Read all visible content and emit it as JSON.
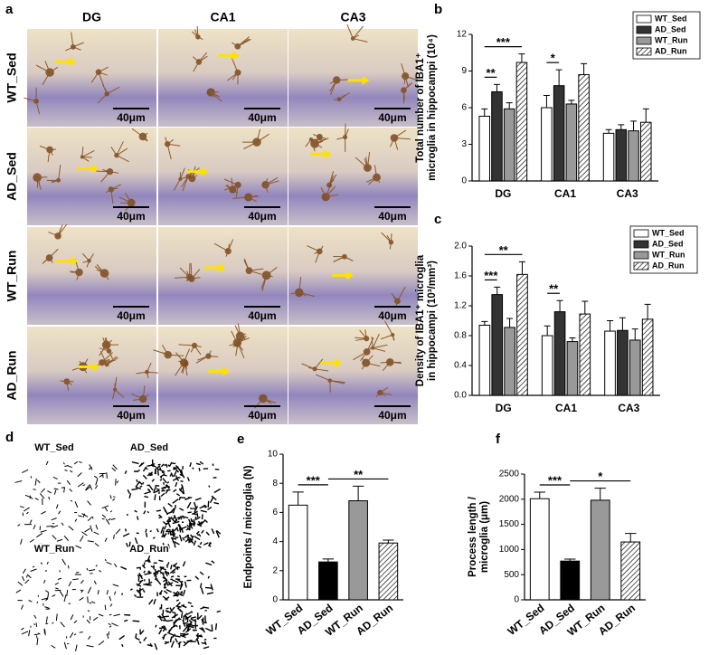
{
  "micrographs": {
    "panel": "a",
    "columns": [
      "DG",
      "CA1",
      "CA3"
    ],
    "rows": [
      "WT_Sed",
      "AD_Sed",
      "WT_Run",
      "AD_Run"
    ],
    "scale_bar": "40μm"
  },
  "skeletons": {
    "panel": "d",
    "labels": [
      "WT_Sed",
      "AD_Sed",
      "WT_Run",
      "AD_Run"
    ]
  },
  "chart_data": [
    {
      "type": "grouped_bar",
      "panel": "b",
      "y_label": [
        "Total number of IBA1⁺",
        "microglia in hippocampi (10⁴)"
      ],
      "categories": [
        "DG",
        "CA1",
        "CA3"
      ],
      "series": [
        {
          "name": "WT_Sed",
          "color": "#ffffff",
          "values": [
            5.3,
            6.0,
            3.9
          ],
          "errors": [
            0.6,
            1.0,
            0.3
          ]
        },
        {
          "name": "AD_Sed",
          "color": "#333333",
          "values": [
            7.3,
            7.8,
            4.2
          ],
          "errors": [
            0.6,
            1.3,
            0.4
          ]
        },
        {
          "name": "WT_Run",
          "color": "#999999",
          "values": [
            5.9,
            6.3,
            4.1
          ],
          "errors": [
            0.5,
            0.3,
            0.8
          ]
        },
        {
          "name": "AD_Run",
          "color": "#000000",
          "hatch": true,
          "values": [
            9.7,
            8.7,
            4.8
          ],
          "errors": [
            0.7,
            0.9,
            1.1
          ]
        }
      ],
      "annotations": [
        {
          "text": "**",
          "category": 0,
          "from": 0,
          "to": 1
        },
        {
          "text": "***",
          "category": 0,
          "from": 0,
          "to": 3
        },
        {
          "text": "*",
          "category": 1,
          "from": 0,
          "to": 1
        }
      ],
      "ylim": [
        0,
        12
      ],
      "yticks": [
        0,
        3,
        6,
        9,
        12
      ],
      "legend": "upper right"
    },
    {
      "type": "grouped_bar",
      "panel": "c",
      "y_label": [
        "Density of IBA1⁺ microglia",
        "in hippocampi (10³/mm³)"
      ],
      "categories": [
        "DG",
        "CA1",
        "CA3"
      ],
      "series": [
        {
          "name": "WT_Sed",
          "color": "#ffffff",
          "values": [
            0.94,
            0.8,
            0.86
          ],
          "errors": [
            0.05,
            0.13,
            0.14
          ]
        },
        {
          "name": "AD_Sed",
          "color": "#333333",
          "values": [
            1.35,
            1.12,
            0.87
          ],
          "errors": [
            0.1,
            0.15,
            0.17
          ]
        },
        {
          "name": "WT_Run",
          "color": "#999999",
          "values": [
            0.91,
            0.72,
            0.74
          ],
          "errors": [
            0.12,
            0.05,
            0.15
          ]
        },
        {
          "name": "AD_Run",
          "color": "#000000",
          "hatch": true,
          "values": [
            1.62,
            1.09,
            1.02
          ],
          "errors": [
            0.17,
            0.17,
            0.2
          ]
        }
      ],
      "annotations": [
        {
          "text": "***",
          "category": 0,
          "from": 0,
          "to": 1
        },
        {
          "text": "**",
          "category": 0,
          "from": 0,
          "to": 3
        },
        {
          "text": "**",
          "category": 1,
          "from": 0,
          "to": 1
        }
      ],
      "ylim": [
        0,
        2.0
      ],
      "yticks": [
        {
          "value": 0,
          "label": "0.0"
        },
        0.4,
        0.8,
        1.2,
        1.6,
        {
          "value": 2.0,
          "label": "2.0"
        }
      ],
      "legend": "upper right"
    },
    {
      "type": "bar",
      "panel": "e",
      "y_label": [
        "Endpoints / microglia (N)"
      ],
      "categories": [
        "WT_Sed",
        "AD_Sed",
        "WT_Run",
        "AD_Run"
      ],
      "values": [
        6.5,
        2.6,
        6.8,
        3.9
      ],
      "errors": [
        0.9,
        0.2,
        1.0,
        0.2
      ],
      "colors": [
        "#ffffff",
        "#000000",
        "#999999",
        "#000000"
      ],
      "hatched": [
        false,
        false,
        false,
        true
      ],
      "annotations": [
        {
          "text": "***",
          "from": 0,
          "to": 1
        },
        {
          "text": "**",
          "from": 1,
          "to": 3
        }
      ],
      "ylim": [
        0,
        10
      ],
      "yticks": [
        0,
        2,
        4,
        6,
        8,
        10
      ]
    },
    {
      "type": "bar",
      "panel": "f",
      "y_label": [
        "Process length /",
        "microglia (μm)"
      ],
      "categories": [
        "WT_Sed",
        "AD_Sed",
        "WT_Run",
        "AD_Run"
      ],
      "values": [
        2010,
        770,
        1980,
        1150
      ],
      "errors": [
        130,
        40,
        240,
        170
      ],
      "colors": [
        "#ffffff",
        "#000000",
        "#999999",
        "#000000"
      ],
      "hatched": [
        false,
        false,
        false,
        true
      ],
      "annotations": [
        {
          "text": "***",
          "from": 0,
          "to": 1
        },
        {
          "text": "*",
          "from": 1,
          "to": 3
        }
      ],
      "ylim": [
        0,
        2500
      ],
      "yticks": [
        0,
        500,
        1000,
        1500,
        2000,
        2500
      ]
    }
  ]
}
